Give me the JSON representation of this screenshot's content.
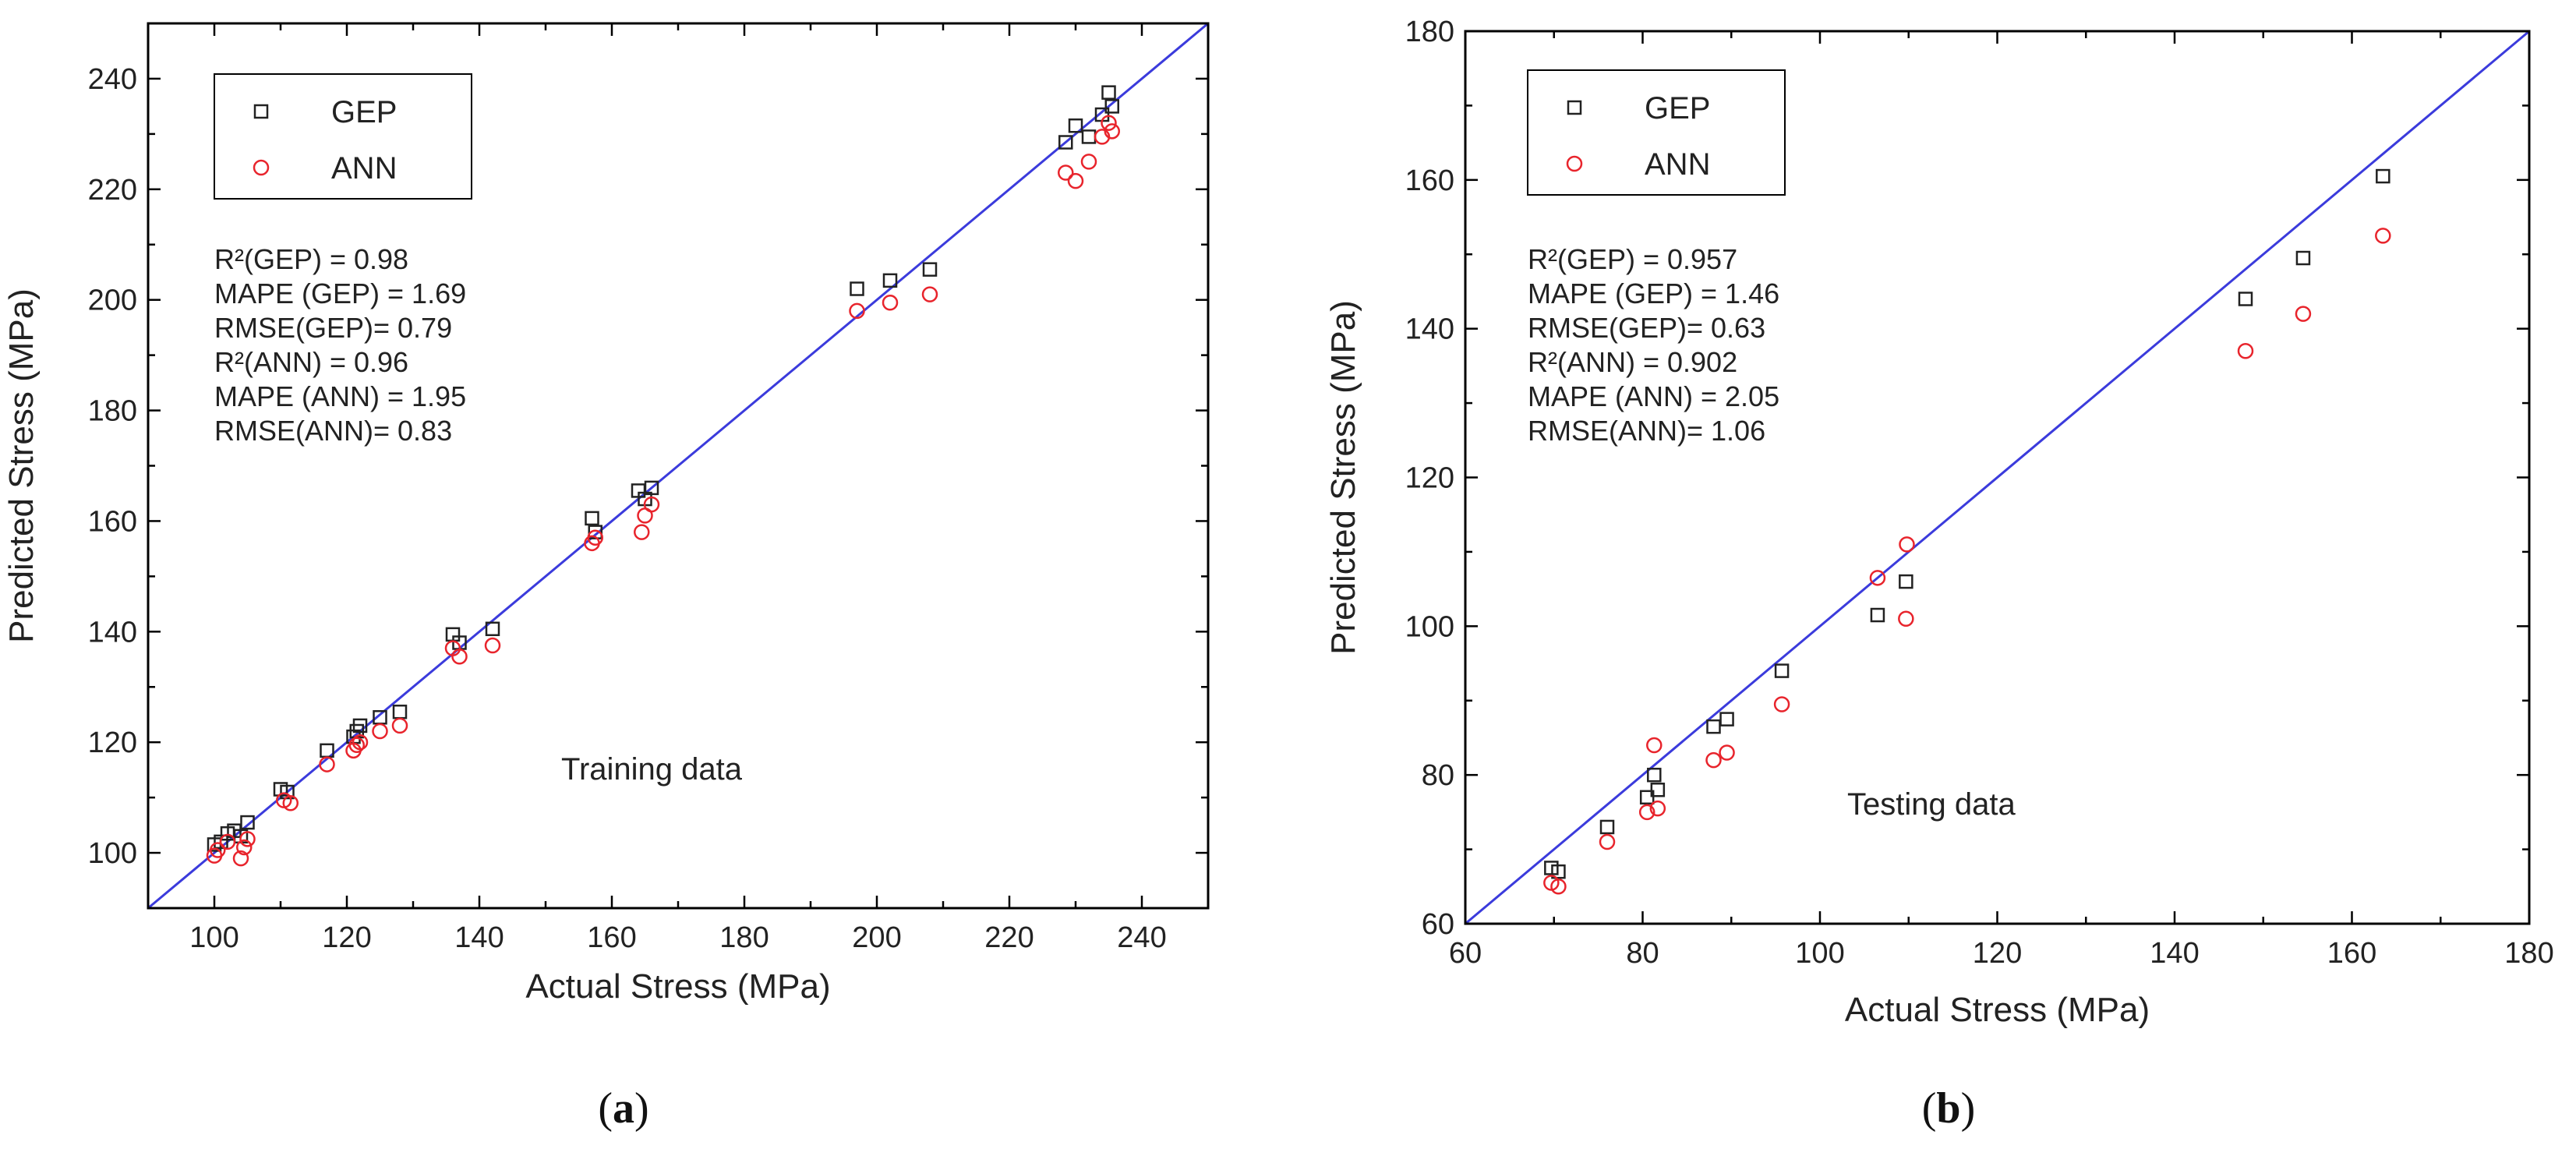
{
  "colors": {
    "gep": "#222222",
    "ann": "#e8242c",
    "line": "#3b3bdc",
    "axis": "#000000"
  },
  "chart_data": [
    {
      "type": "scatter",
      "caption_open": "(",
      "caption_letter": "a",
      "caption_close": ")",
      "xlabel": "Actual Stress (MPa)",
      "ylabel": "Predicted Stress (MPa)",
      "xlim": [
        90,
        250
      ],
      "ylim": [
        90,
        250
      ],
      "xticks": [
        100,
        120,
        140,
        160,
        180,
        200,
        220,
        240
      ],
      "yticks": [
        100,
        120,
        140,
        160,
        180,
        200,
        220,
        240
      ],
      "legend": [
        "GEP",
        "ANN"
      ],
      "stats": [
        "R²(GEP) = 0.98",
        "MAPE (GEP) = 1.69",
        "RMSE(GEP)= 0.79",
        "R²(ANN) = 0.96",
        "MAPE (ANN) = 1.95",
        "RMSE(ANN)= 0.83"
      ],
      "annotation": "Training data",
      "reference_line": [
        [
          90,
          90
        ],
        [
          250,
          250
        ]
      ],
      "series": [
        {
          "name": "GEP",
          "marker": "square",
          "points": [
            [
              100,
              101.5
            ],
            [
              101,
              102
            ],
            [
              102,
              103.5
            ],
            [
              103,
              104
            ],
            [
              104,
              103
            ],
            [
              105,
              105.5
            ],
            [
              110,
              111.5
            ],
            [
              111,
              111
            ],
            [
              117,
              118.5
            ],
            [
              121,
              121
            ],
            [
              121.5,
              122
            ],
            [
              122,
              123
            ],
            [
              125,
              124.5
            ],
            [
              128,
              125.5
            ],
            [
              136,
              139.5
            ],
            [
              137,
              138
            ],
            [
              142,
              140.5
            ],
            [
              157,
              160.5
            ],
            [
              157.5,
              158
            ],
            [
              164,
              165.5
            ],
            [
              165,
              164
            ],
            [
              166,
              166
            ],
            [
              197,
              202
            ],
            [
              202,
              203.5
            ],
            [
              208,
              205.5
            ],
            [
              228.5,
              228.5
            ],
            [
              230,
              231.5
            ],
            [
              232,
              229.5
            ],
            [
              234,
              233.5
            ],
            [
              235,
              237.5
            ],
            [
              235.5,
              235
            ]
          ]
        },
        {
          "name": "ANN",
          "marker": "circle",
          "points": [
            [
              100,
              99.5
            ],
            [
              100.5,
              100.5
            ],
            [
              102,
              102
            ],
            [
              104,
              99
            ],
            [
              104.5,
              101
            ],
            [
              105,
              102.5
            ],
            [
              110.5,
              109.5
            ],
            [
              111.5,
              109
            ],
            [
              117,
              116
            ],
            [
              121,
              118.5
            ],
            [
              121.5,
              119.5
            ],
            [
              122,
              120
            ],
            [
              125,
              122
            ],
            [
              128,
              123
            ],
            [
              136,
              137
            ],
            [
              137,
              135.5
            ],
            [
              142,
              137.5
            ],
            [
              157,
              156
            ],
            [
              157.5,
              157
            ],
            [
              164.5,
              158
            ],
            [
              165,
              161
            ],
            [
              166,
              163
            ],
            [
              197,
              198
            ],
            [
              202,
              199.5
            ],
            [
              208,
              201
            ],
            [
              228.5,
              223
            ],
            [
              230,
              221.5
            ],
            [
              232,
              225
            ],
            [
              234,
              229.5
            ],
            [
              235,
              232
            ],
            [
              235.5,
              230.5
            ]
          ]
        }
      ]
    },
    {
      "type": "scatter",
      "caption_open": "(",
      "caption_letter": "b",
      "caption_close": ")",
      "xlabel": "Actual Stress (MPa)",
      "ylabel": "Predicted Stress (MPa)",
      "xlim": [
        60,
        180
      ],
      "ylim": [
        60,
        180
      ],
      "xticks": [
        60,
        80,
        100,
        120,
        140,
        160,
        180
      ],
      "yticks": [
        60,
        80,
        100,
        120,
        140,
        160,
        180
      ],
      "legend": [
        "GEP",
        "ANN"
      ],
      "stats": [
        "R²(GEP) = 0.957",
        "MAPE (GEP) = 1.46",
        "RMSE(GEP)= 0.63",
        "R²(ANN) = 0.902",
        "MAPE (ANN) = 2.05",
        "RMSE(ANN)= 1.06"
      ],
      "annotation": "Testing data",
      "reference_line": [
        [
          60,
          60
        ],
        [
          180,
          180
        ]
      ],
      "series": [
        {
          "name": "GEP",
          "marker": "square",
          "points": [
            [
              69.7,
              67.5
            ],
            [
              70.5,
              67
            ],
            [
              76,
              73
            ],
            [
              80.5,
              77
            ],
            [
              81.3,
              80
            ],
            [
              81.7,
              78
            ],
            [
              88,
              86.5
            ],
            [
              89.5,
              87.5
            ],
            [
              95.7,
              94
            ],
            [
              106.5,
              101.5
            ],
            [
              109.7,
              106
            ],
            [
              148,
              144
            ],
            [
              154.5,
              149.5
            ],
            [
              163.5,
              160.5
            ]
          ]
        },
        {
          "name": "ANN",
          "marker": "circle",
          "points": [
            [
              69.7,
              65.5
            ],
            [
              70.5,
              65
            ],
            [
              76,
              71
            ],
            [
              80.5,
              75
            ],
            [
              81.3,
              84
            ],
            [
              81.7,
              75.5
            ],
            [
              88,
              82
            ],
            [
              89.5,
              83
            ],
            [
              95.7,
              89.5
            ],
            [
              106.5,
              106.5
            ],
            [
              109.7,
              101
            ],
            [
              109.8,
              111
            ],
            [
              148,
              137
            ],
            [
              154.5,
              142
            ],
            [
              163.5,
              152.5
            ]
          ]
        }
      ]
    }
  ]
}
